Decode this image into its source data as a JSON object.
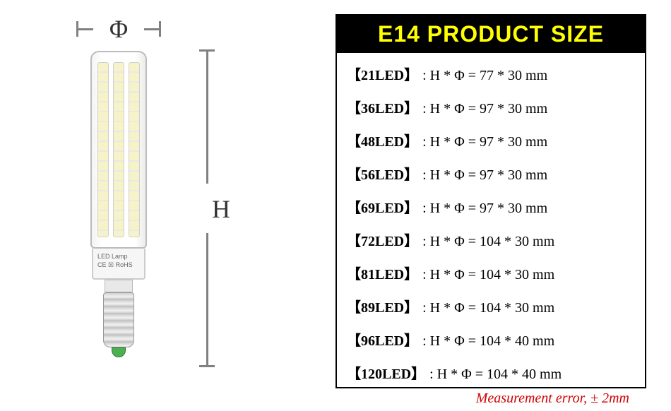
{
  "diagram": {
    "phi_symbol": "Φ",
    "h_symbol": "H",
    "bulb_label_line1": "LED Lamp",
    "bulb_label_line2": "CE ☒ RoHS"
  },
  "table": {
    "header": "E14 PRODUCT SIZE",
    "header_bg": "#000000",
    "header_color": "#ffff00",
    "rows": [
      {
        "label": "【21LED】",
        "dims": ":   H * Φ = 77 * 30 mm"
      },
      {
        "label": "【36LED】",
        "dims": ":   H * Φ = 97 * 30 mm"
      },
      {
        "label": "【48LED】",
        "dims": ":   H * Φ = 97 * 30 mm"
      },
      {
        "label": "【56LED】",
        "dims": ":   H * Φ = 97 * 30 mm"
      },
      {
        "label": "【69LED】",
        "dims": ":   H * Φ = 97 * 30 mm"
      },
      {
        "label": "【72LED】",
        "dims": ":   H * Φ = 104 * 30 mm"
      },
      {
        "label": "【81LED】",
        "dims": ":   H * Φ = 104 * 30 mm"
      },
      {
        "label": "【89LED】",
        "dims": ":   H * Φ = 104 * 30 mm"
      },
      {
        "label": "【96LED】",
        "dims": ":   H * Φ = 104 * 40 mm"
      },
      {
        "label": "【120LED】",
        "dims": ":   H * Φ = 104 * 40 mm"
      }
    ],
    "error_note": "Measurement error, ± 2mm",
    "error_color": "#d00000"
  },
  "styling": {
    "page_bg": "#ffffff",
    "border_color": "#000000",
    "dim_line_color": "#808080",
    "text_color": "#000000",
    "font_family_table": "Times New Roman",
    "header_fontsize": 32,
    "row_fontsize": 20
  }
}
